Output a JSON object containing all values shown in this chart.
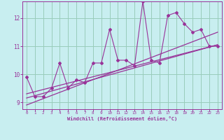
{
  "xlabel": "Windchill (Refroidissement éolien,°C)",
  "bg_color": "#c8eef0",
  "line_color": "#993399",
  "grid_color": "#99ccbb",
  "xlim": [
    -0.5,
    23.5
  ],
  "ylim": [
    8.75,
    12.6
  ],
  "xticks": [
    0,
    1,
    2,
    3,
    4,
    5,
    6,
    7,
    8,
    9,
    10,
    11,
    12,
    13,
    14,
    15,
    16,
    17,
    18,
    19,
    20,
    21,
    22,
    23
  ],
  "yticks": [
    9,
    10,
    11,
    12
  ],
  "series": [
    {
      "x": [
        0,
        1,
        2,
        3,
        4,
        5,
        6,
        7,
        8,
        9,
        10,
        11,
        12,
        13,
        14,
        15,
        16,
        17,
        18,
        19,
        20,
        21,
        22,
        23
      ],
      "y": [
        9.9,
        9.2,
        9.2,
        9.5,
        10.4,
        9.5,
        9.8,
        9.7,
        10.4,
        10.4,
        11.6,
        10.5,
        10.5,
        10.3,
        12.6,
        10.5,
        10.4,
        12.1,
        12.2,
        11.8,
        11.5,
        11.6,
        11.0,
        11.0
      ]
    },
    {
      "x": [
        0,
        23
      ],
      "y": [
        9.15,
        11.05
      ]
    },
    {
      "x": [
        0,
        23
      ],
      "y": [
        8.9,
        11.5
      ]
    },
    {
      "x": [
        0,
        23
      ],
      "y": [
        9.3,
        11.05
      ]
    }
  ]
}
